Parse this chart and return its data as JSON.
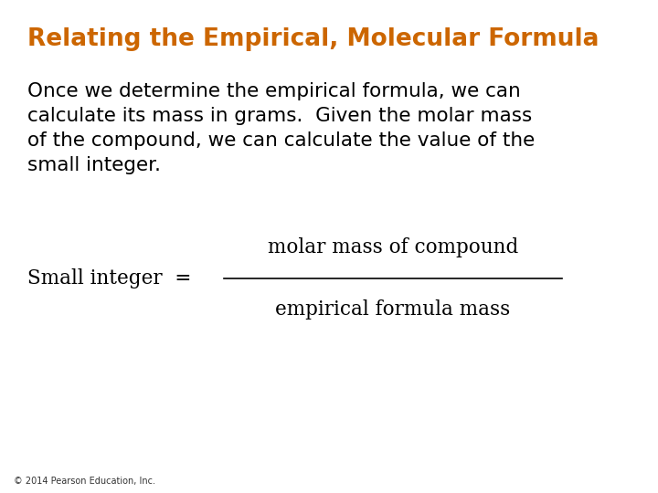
{
  "title": "Relating the Empirical, Molecular Formula",
  "title_color": "#CC6600",
  "title_fontsize": 19,
  "body_text_lines": [
    "Once we determine the empirical formula, we can",
    "calculate its mass in grams.  Given the molar mass",
    "of the compound, we can calculate the value of the",
    "small integer."
  ],
  "body_fontsize": 15.5,
  "body_color": "#000000",
  "formula_left": "Small integer  =",
  "formula_numerator": "molar mass of compound",
  "formula_denominator": "empirical formula mass",
  "formula_fontsize": 15.5,
  "footer": "© 2014 Pearson Education, Inc.",
  "footer_fontsize": 7,
  "footer_color": "#333333",
  "bg_color": "#ffffff"
}
